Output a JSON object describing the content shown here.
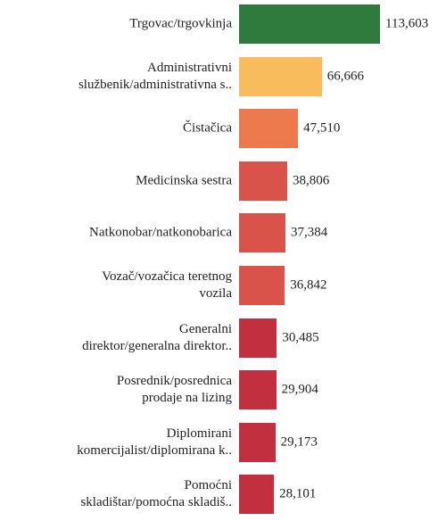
{
  "chart_data": {
    "type": "bar",
    "orientation": "horizontal",
    "categories": [
      "Trgovac/trgovkinja",
      "Administrativni\nslužbenik/administrativna s..",
      "Čistačica",
      "Medicinska sestra",
      "Natkonobar/natkonobarica",
      "Vozač/vozačica teretnog\nvozila",
      "Generalni\ndirektor/generalna direktor..",
      "Posrednik/posrednica\nprodaje na lizing",
      "Diplomirani\nkomercijalist/diplomirana k..",
      "Pomoćni\nskladištar/pomoćna skladiš.."
    ],
    "values": [
      113603,
      66666,
      47510,
      38806,
      37384,
      36842,
      30485,
      29904,
      29173,
      28101
    ],
    "value_labels": [
      "113,603",
      "66,666",
      "47,510",
      "38,806",
      "37,384",
      "36,842",
      "30,485",
      "29,904",
      "29,173",
      "28,101"
    ],
    "colors": [
      "#2e7b3d",
      "#f8bc5c",
      "#ec7a4c",
      "#d9534a",
      "#d9534a",
      "#d9534a",
      "#c22f3f",
      "#c22f3f",
      "#c22f3f",
      "#c22f3f"
    ]
  }
}
